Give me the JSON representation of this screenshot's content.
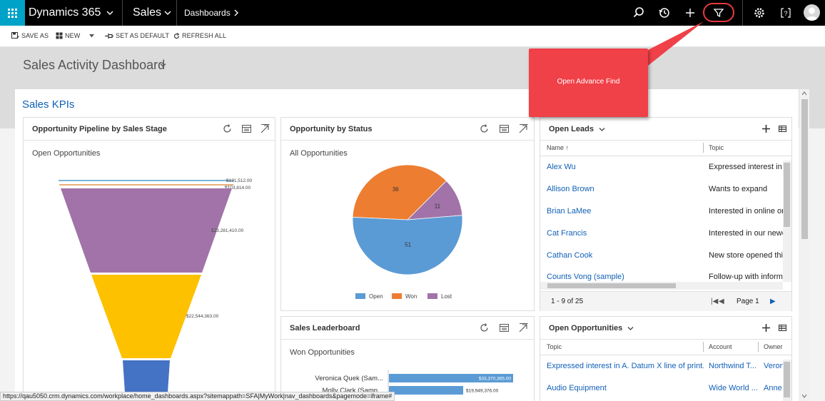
{
  "topbar": {
    "brand": "Dynamics 365",
    "module": "Sales",
    "breadcrumb": "Dashboards"
  },
  "commands": {
    "save_as": "SAVE AS",
    "new": "NEW",
    "set_default": "SET AS DEFAULT",
    "refresh_all": "REFRESH ALL"
  },
  "dashboard": {
    "title": "Sales Activity Dashboard",
    "section_title": "Sales KPIs"
  },
  "callout": {
    "text": "Open Advance Find",
    "color": "#f04048"
  },
  "pipeline": {
    "title": "Opportunity Pipeline by Sales Stage",
    "subtitle": "Open Opportunities",
    "chart_data": {
      "type": "funnel",
      "stages": [
        {
          "value": 121512.0,
          "label": "$121,512.00",
          "color": "#7cb5d8"
        },
        {
          "value": 103814.0,
          "label": "$103,814.00",
          "color": "#e8b07a"
        },
        {
          "value": 23281410.0,
          "label": "$23,281,410.00",
          "color": "#a173a8"
        },
        {
          "value": 22544363.0,
          "label": "$22,544,363.00",
          "color": "#fdc100"
        },
        {
          "value": 0,
          "label": "",
          "color": "#4472c4"
        }
      ]
    }
  },
  "status": {
    "title": "Opportunity by Status",
    "subtitle": "All Opportunities",
    "chart_data": {
      "type": "pie",
      "slices": [
        {
          "name": "Open",
          "value": 51,
          "color": "#5b9bd5"
        },
        {
          "name": "Won",
          "value": 36,
          "color": "#ed7d31"
        },
        {
          "name": "Lost",
          "value": 11,
          "color": "#a173a8"
        }
      ],
      "legend": [
        "Open",
        "Won",
        "Lost"
      ]
    }
  },
  "leaderboard": {
    "title": "Sales Leaderboard",
    "subtitle": "Won Opportunities",
    "chart_data": {
      "type": "bar",
      "categories": [
        "Veronica Quek (Sam...",
        "Molly Clark (Samp..."
      ],
      "values": [
        33370365.0,
        19949376.0
      ],
      "labels": [
        "$33,370,365.00",
        "$19,949,376.00"
      ]
    }
  },
  "leads": {
    "title": "Open Leads",
    "columns": [
      "Name",
      "Topic"
    ],
    "rows": [
      {
        "name": "Alex Wu",
        "topic": "Expressed interest in A"
      },
      {
        "name": "Allison Brown",
        "topic": "Wants to expand"
      },
      {
        "name": "Brian LaMee",
        "topic": "Interested in online or"
      },
      {
        "name": "Cat Francis",
        "topic": "Interested in our newe"
      },
      {
        "name": "Cathan Cook",
        "topic": "New store opened this"
      },
      {
        "name": "Counts Vong (sample)",
        "topic": "Follow-up with inform"
      }
    ],
    "record_count": "1 - 9 of 25",
    "page": "Page 1"
  },
  "opps": {
    "title": "Open Opportunities",
    "columns": [
      "Topic",
      "Account",
      "Owner"
    ],
    "rows": [
      {
        "topic": "Expressed interest in A. Datum X line of print...",
        "account": "Northwind T...",
        "owner": "Veron"
      },
      {
        "topic": "Audio Equipment",
        "account": "Wide World ...",
        "owner": "Anne"
      }
    ]
  },
  "statusbar": {
    "url": "https://qau5050.crm.dynamics.com/workplace/home_dashboards.aspx?sitemappath=SFA|MyWork|nav_dashboards&pagemode=iframe#"
  }
}
